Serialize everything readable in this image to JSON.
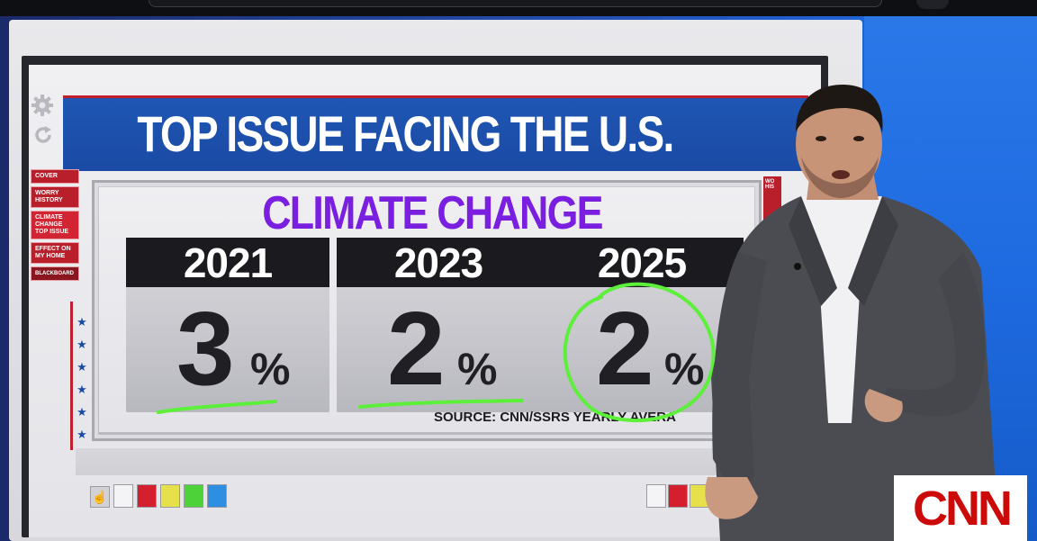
{
  "header": {
    "title": "TOP ISSUE FACING THE U.S."
  },
  "sidebar": {
    "items": [
      {
        "label": "COVER"
      },
      {
        "label": "WORRY HISTORY"
      },
      {
        "label": "CLIMATE CHANGE TOP ISSUE"
      },
      {
        "label": "EFFECT ON MY HOME"
      },
      {
        "label": "BLACKBOARD"
      }
    ],
    "right_stub": "WO HIS"
  },
  "panel": {
    "subtitle": "CLIMATE CHANGE",
    "cards": [
      {
        "year": "2021",
        "number": "3",
        "sign": "%"
      },
      {
        "year": "2023",
        "number": "2",
        "sign": "%"
      },
      {
        "year": "2025",
        "number": "2",
        "sign": "%"
      }
    ],
    "source": "SOURCE: CNN/SSRS YEARLY AVERA"
  },
  "logo": {
    "text": "CNN"
  },
  "colors": {
    "header_blue": "#1a4aa4",
    "nav_red": "#b81f2b",
    "subtitle_purple": "#7a1fe0",
    "annotation_green": "#5cf03a",
    "logo_red": "#cc0a0a"
  },
  "icons": [
    "gear-icon",
    "refresh-icon",
    "star-icon",
    "hand-tool-icon"
  ]
}
